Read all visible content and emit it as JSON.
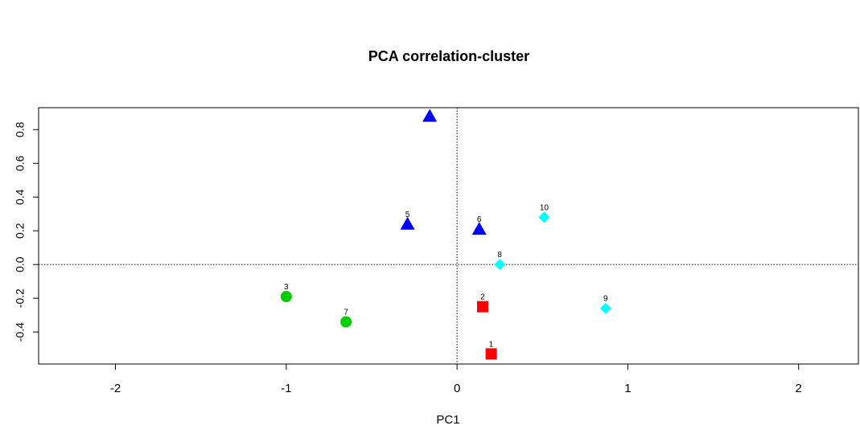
{
  "chart_data": {
    "type": "scatter",
    "title": "PCA correlation-cluster",
    "xlabel": "PC1",
    "ylabel": "",
    "xlim": [
      -2.45,
      2.35
    ],
    "ylim": [
      -0.59,
      0.93
    ],
    "xticks": [
      "-2",
      "-1",
      "0",
      "1",
      "2"
    ],
    "yticks": [
      "-0.4",
      "-0.2",
      "0.0",
      "0.2",
      "0.4",
      "0.6",
      "0.8"
    ],
    "grid": false,
    "reference_lines": {
      "x": 0,
      "y": 0
    },
    "points": [
      {
        "label": "1",
        "x": 0.2,
        "y": -0.53,
        "group": "square",
        "color": "#ff0000"
      },
      {
        "label": "2",
        "x": 0.15,
        "y": -0.25,
        "group": "square",
        "color": "#ff0000"
      },
      {
        "label": "3",
        "x": -1.0,
        "y": -0.19,
        "group": "circle",
        "color": "#00cc00"
      },
      {
        "label": "7",
        "x": -0.65,
        "y": -0.34,
        "group": "circle",
        "color": "#00cc00"
      },
      {
        "label": "",
        "x": -0.16,
        "y": 0.88,
        "group": "triangle",
        "color": "#0000ff"
      },
      {
        "label": "5",
        "x": -0.29,
        "y": 0.24,
        "group": "triangle",
        "color": "#0000ff"
      },
      {
        "label": "6",
        "x": 0.13,
        "y": 0.21,
        "group": "triangle",
        "color": "#0000ff"
      },
      {
        "label": "8",
        "x": 0.25,
        "y": 0.0,
        "group": "diamond",
        "color": "#00ffff"
      },
      {
        "label": "9",
        "x": 0.87,
        "y": -0.26,
        "group": "diamond",
        "color": "#00ffff"
      },
      {
        "label": "10",
        "x": 0.51,
        "y": 0.28,
        "group": "diamond",
        "color": "#00ffff"
      }
    ]
  }
}
